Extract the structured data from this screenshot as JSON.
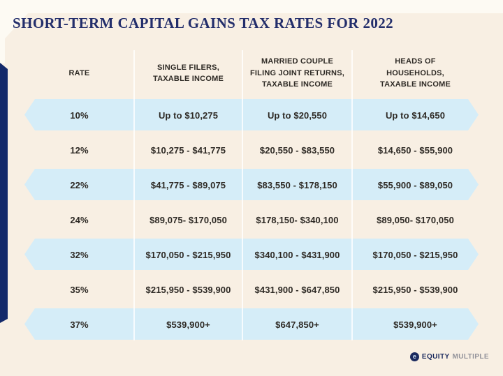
{
  "title": "SHORT-TERM CAPITAL GAINS TAX RATES FOR 2022",
  "colors": {
    "background_cream": "#f8efe3",
    "top_strip": "#fdfaf3",
    "accent_navy": "#13296a",
    "title_navy": "#232e6b",
    "row_highlight_blue": "#d5edf8",
    "table_text": "#2e2a25",
    "divider_white": "rgba(255,255,255,0.78)",
    "logo_navy": "#1b2a5e",
    "logo_gray": "#93939a"
  },
  "chart_data": {
    "type": "table",
    "title": "SHORT-TERM CAPITAL GAINS TAX RATES FOR 2022",
    "headers": [
      {
        "lines": [
          "RATE"
        ]
      },
      {
        "lines": [
          "SINGLE FILERS,",
          "TAXABLE INCOME"
        ]
      },
      {
        "lines": [
          "MARRIED COUPLE",
          "FILING JOINT RETURNS,",
          "TAXABLE INCOME"
        ]
      },
      {
        "lines": [
          "HEADS OF",
          "HOUSEHOLDS,",
          "TAXABLE INCOME"
        ]
      }
    ],
    "rows": [
      {
        "rate": "10%",
        "single": "Up to $10,275",
        "married": "Up to $20,550",
        "hoh": "Up to $14,650",
        "highlight": true
      },
      {
        "rate": "12%",
        "single": "$10,275 - $41,775",
        "married": "$20,550 - $83,550",
        "hoh": "$14,650 - $55,900",
        "highlight": false
      },
      {
        "rate": "22%",
        "single": "$41,775 - $89,075",
        "married": "$83,550 - $178,150",
        "hoh": "$55,900 - $89,050",
        "highlight": true
      },
      {
        "rate": "24%",
        "single": "$89,075- $170,050",
        "married": "$178,150- $340,100",
        "hoh": "$89,050- $170,050",
        "highlight": false
      },
      {
        "rate": "32%",
        "single": "$170,050 - $215,950",
        "married": "$340,100 - $431,900",
        "hoh": "$170,050 - $215,950",
        "highlight": true
      },
      {
        "rate": "35%",
        "single": "$215,950 - $539,900",
        "married": "$431,900 - $647,850",
        "hoh": "$215,950 - $539,900",
        "highlight": false
      },
      {
        "rate": "37%",
        "single": "$539,900+",
        "married": "$647,850+",
        "hoh": "$539,900+",
        "highlight": true
      }
    ],
    "layout_hints": {
      "highlight_rows_are_light_blue_hexagonal_pills": true,
      "columns": 4
    }
  },
  "logo": {
    "icon_glyph": "e",
    "equity": "EQUITY",
    "multiple": "MULTIPLE"
  }
}
